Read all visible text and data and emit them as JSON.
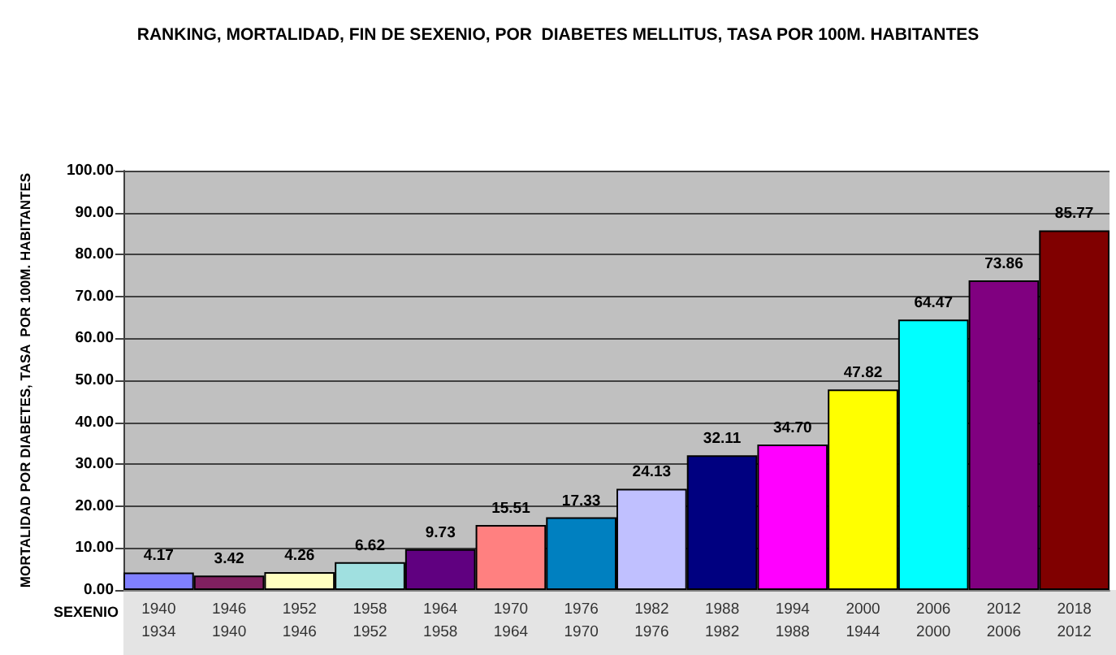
{
  "chart_data": {
    "type": "bar",
    "title": "RANKING, MORTALIDAD, FIN DE SEXENIO, POR  DIABETES MELLITUS, TASA POR 100M. HABITANTES",
    "xlabel": "SEXENIO",
    "ylabel": "MORTALIDAD POR DIABETES, TASA  POR 100M. HABITANTES",
    "categories": [
      "1940\n1934",
      "1946\n1940",
      "1952\n1946",
      "1958\n1952",
      "1964\n1958",
      "1970\n1964",
      "1976\n1970",
      "1982\n1976",
      "1988\n1982",
      "1994\n1988",
      "2000\n1944",
      "2006\n2000",
      "2012\n2006",
      "2018\n2012"
    ],
    "values": [
      4.17,
      3.42,
      4.26,
      6.62,
      9.73,
      15.51,
      17.33,
      24.13,
      32.11,
      34.7,
      47.82,
      64.47,
      73.86,
      85.77
    ],
    "value_labels": [
      "4.17",
      "3.42",
      "4.26",
      "6.62",
      "9.73",
      "15.51",
      "17.33",
      "24.13",
      "32.11",
      "34.70",
      "47.82",
      "64.47",
      "73.86",
      "85.77"
    ],
    "colors": [
      "#8080ff",
      "#802060",
      "#ffffc0",
      "#a0e0e0",
      "#600080",
      "#ff8080",
      "#0080c0",
      "#c0c0ff",
      "#000080",
      "#ff00ff",
      "#ffff00",
      "#00ffff",
      "#800080",
      "#800000"
    ],
    "ylim": [
      0,
      100
    ],
    "yticks": [
      {
        "value": 0,
        "label": "0.00"
      },
      {
        "value": 10,
        "label": "10.00"
      },
      {
        "value": 20,
        "label": "20.00"
      },
      {
        "value": 30,
        "label": "30.00"
      },
      {
        "value": 40,
        "label": "40.00"
      },
      {
        "value": 50,
        "label": "50.00"
      },
      {
        "value": 60,
        "label": "60.00"
      },
      {
        "value": 70,
        "label": "70.00"
      },
      {
        "value": 80,
        "label": "80.00"
      },
      {
        "value": 90,
        "label": "90.00"
      },
      {
        "value": 100,
        "label": "100.00"
      }
    ],
    "grid": "y"
  }
}
